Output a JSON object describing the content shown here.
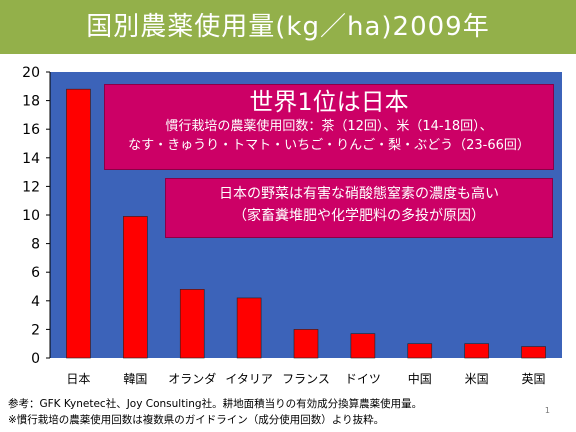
{
  "slide": {
    "title": "国別農薬使用量(kg／ha)2009年",
    "page_number": "1"
  },
  "callouts": {
    "main": {
      "headline": "世界1位は日本",
      "line1": "慣行栽培の農薬使用回数：茶（12回）、米（14-18回）、",
      "line2": "なす・きゅうり・トマト・いちご・りんご・梨・ぶどう（23-66回）"
    },
    "sub": {
      "line1": "日本の野菜は有害な硝酸態窒素の濃度も高い",
      "line2": "（家畜糞堆肥や化学肥料の多投が原因）"
    }
  },
  "footnotes": {
    "line1": "参考：GFK Kynetec社、Joy Consulting社。耕地面積当りの有効成分換算農薬使用量。",
    "line2": "※慣行栽培の農薬使用回数は複数県のガイドライン（成分使用回数）より抜粋。"
  },
  "colors": {
    "title_bg": "#93b04a",
    "plot_bg": "#3c63b9",
    "bar": "#ff0000",
    "callout": "#cc0066"
  },
  "chart_data": {
    "type": "bar",
    "title": "",
    "xlabel": "",
    "ylabel": "",
    "categories": [
      "日本",
      "韓国",
      "オランダ",
      "イタリア",
      "フランス",
      "ドイツ",
      "中国",
      "米国",
      "英国"
    ],
    "values": [
      18.8,
      9.9,
      4.8,
      4.2,
      2.0,
      1.7,
      1.0,
      1.0,
      0.8
    ],
    "ylim": [
      0,
      20
    ],
    "yticks": [
      0,
      2,
      4,
      6,
      8,
      10,
      12,
      14,
      16,
      18,
      20
    ],
    "grid": false,
    "legend": "none"
  }
}
